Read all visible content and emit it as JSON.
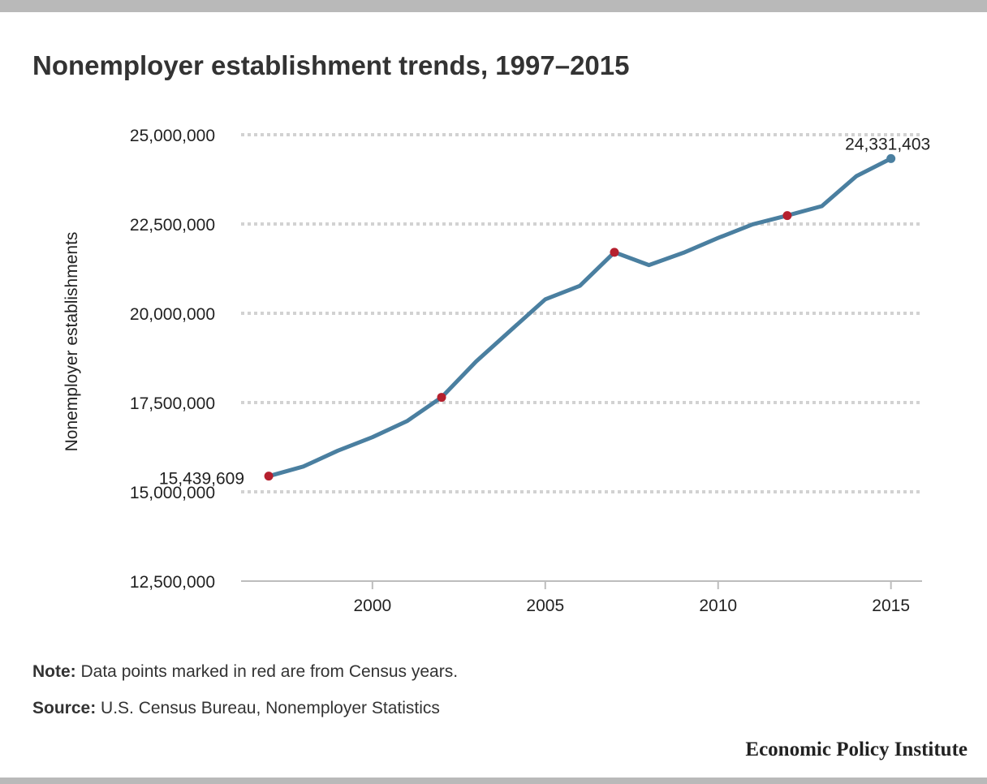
{
  "title": "Nonemployer establishment trends, 1997–2015",
  "chart_data": {
    "type": "line",
    "title": "Nonemployer establishment trends, 1997–2015",
    "ylabel": "Nonemployer establishments",
    "xlabel": "",
    "ylim": [
      12500000,
      25000000
    ],
    "xlim": [
      1996.2,
      2015.9
    ],
    "y_ticks": [
      {
        "value": 12500000,
        "label": "12,500,000"
      },
      {
        "value": 15000000,
        "label": "15,000,000"
      },
      {
        "value": 17500000,
        "label": "17,500,000"
      },
      {
        "value": 20000000,
        "label": "20,000,000"
      },
      {
        "value": 22500000,
        "label": "22,500,000"
      },
      {
        "value": 25000000,
        "label": "25,000,000"
      }
    ],
    "x_ticks": [
      {
        "value": 2000,
        "label": "2000"
      },
      {
        "value": 2005,
        "label": "2005"
      },
      {
        "value": 2010,
        "label": "2010"
      },
      {
        "value": 2015,
        "label": "2015"
      }
    ],
    "grid": true,
    "series": [
      {
        "color": "#4a7fa0",
        "x": [
          1997,
          1998,
          1999,
          2000,
          2001,
          2002,
          2003,
          2004,
          2005,
          2006,
          2007,
          2008,
          2009,
          2010,
          2011,
          2012,
          2013,
          2014,
          2015
        ],
        "y": [
          15439609,
          15708000,
          16152000,
          16530000,
          16979000,
          17646000,
          18650000,
          19523000,
          20392000,
          20769000,
          21708000,
          21351000,
          21695000,
          22110000,
          22491000,
          22736000,
          23000000,
          23840000,
          24331403
        ]
      }
    ],
    "highlight_points": [
      {
        "x": 1997,
        "y": 15439609,
        "color": "#b5202e"
      },
      {
        "x": 2002,
        "y": 17646000,
        "color": "#b5202e"
      },
      {
        "x": 2007,
        "y": 21708000,
        "color": "#b5202e"
      },
      {
        "x": 2012,
        "y": 22736000,
        "color": "#b5202e"
      },
      {
        "x": 2015,
        "y": 24331403,
        "color": "#4a7fa0"
      }
    ],
    "annotations": [
      {
        "x": 1997,
        "y": 15439609,
        "text": "15,439,609"
      },
      {
        "x": 2015,
        "y": 24331403,
        "text": "24,331,403"
      }
    ]
  },
  "note": {
    "label": "Note:",
    "text": " Data points marked in red are from Census years."
  },
  "source": {
    "label": "Source:",
    "text": " U.S. Census Bureau, Nonemployer Statistics"
  },
  "brand": "Economic Policy Institute"
}
